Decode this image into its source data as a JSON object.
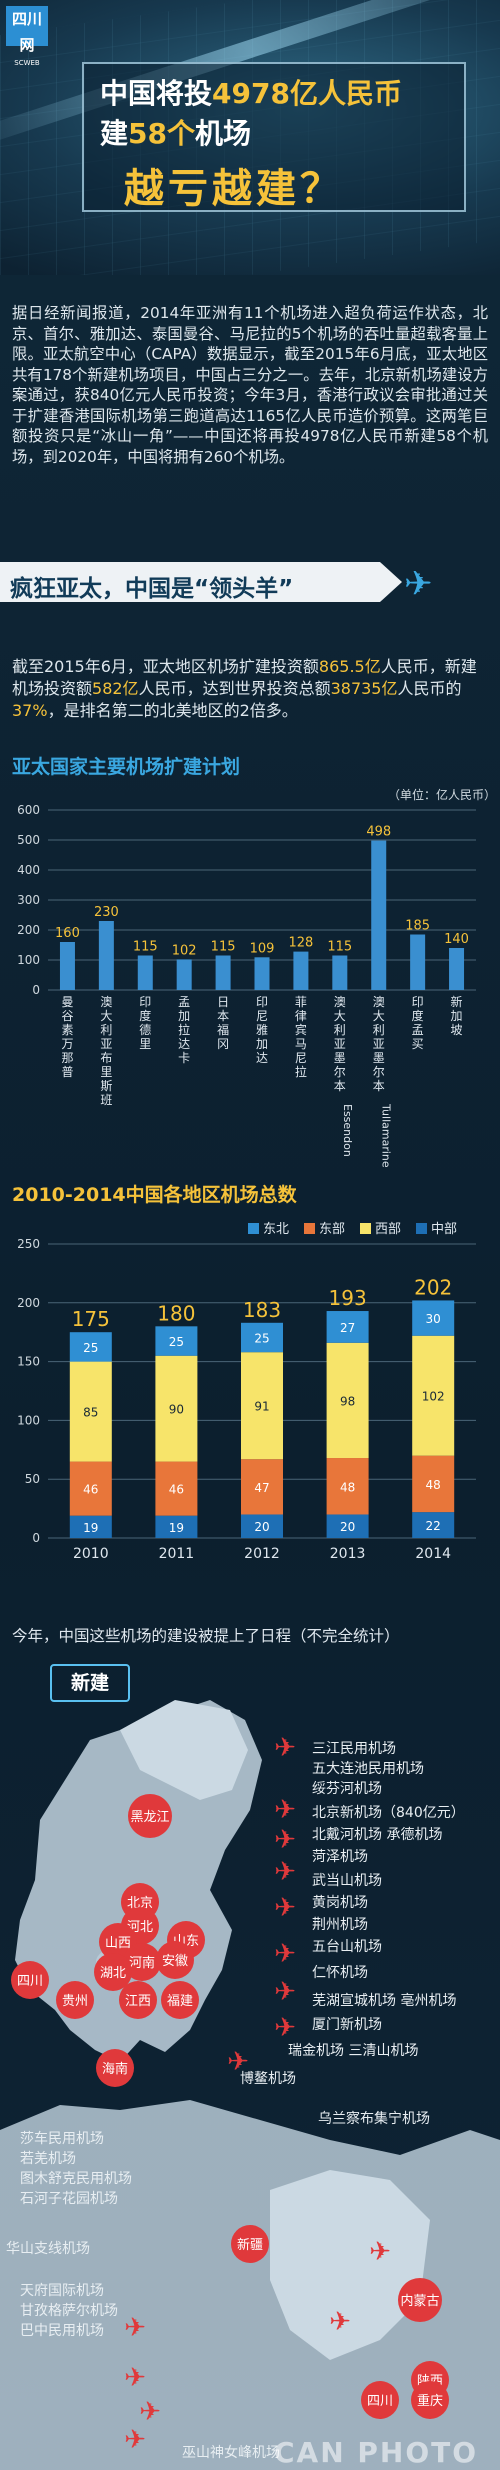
{
  "header": {
    "logo_text": "四川网",
    "logo_sub": "SCWEB",
    "title_line1_pre": "中国将投",
    "title_line1_hl": "4978亿人民币",
    "title_line2_pre": "建",
    "title_line2_hl": "58个",
    "title_line2_post": "机场",
    "title_line3": "越亏越建？"
  },
  "intro": "据日经新闻报道，2014年亚洲有11个机场进入超负荷运作状态，北京、首尔、雅加达、泰国曼谷、马尼拉的5个机场的吞吐量超载客量上限。亚太航空中心（CAPA）数据显示，截至2015年6月底，亚太地区共有178个新建机场项目，中国占三分之一。去年，北京新机场建设方案通过，获840亿元人民币投资；今年3月，香港行政议会审批通过关于扩建香港国际机场第三跑道高达1165亿人民币造价预算。这两笔巨额投资只是“冰山一角”——中国还将再投4978亿人民币新建58个机场，到2020年，中国将拥有260个机场。",
  "section": {
    "banner": "疯狂亚太，中国是“领头羊”"
  },
  "para2": {
    "a": "截至2015年6月，亚太地区机场扩建投资额",
    "b": "865.5亿",
    "c": "人民币，新建机场投资额",
    "d": "582亿",
    "e": "人民币，达到世界投资总额",
    "f": "38735亿",
    "g": "人民币的",
    "h": "37%",
    "i": "，是排名第二的北美地区的2倍多。"
  },
  "chart_data": [
    {
      "type": "bar",
      "title": "亚太国家主要机场扩建计划",
      "unit": "（单位：亿人民币）",
      "categories": [
        "曼谷素万那普",
        "澳大利亚布里斯班",
        "印度德里",
        "孟加拉达卡",
        "日本福冈",
        "印尼雅加达",
        "菲律宾马尼拉",
        "澳大利亚墨尔本Essendon",
        "澳大利亚墨尔本Tullamarine",
        "印度孟买",
        "新加坡"
      ],
      "values": [
        160,
        230,
        115,
        102,
        115,
        109,
        128,
        115,
        498,
        185,
        140
      ],
      "ylim": [
        0,
        600
      ],
      "yticks": [
        0,
        100,
        200,
        300,
        400,
        500,
        600
      ],
      "colors": [
        "#3a8fd0",
        "#3a8fd0",
        "#3a8fd0",
        "#3a8fd0",
        "#3a8fd0",
        "#3a8fd0",
        "#3a8fd0",
        "#3a8fd0",
        "#3a8fd0",
        "#3a8fd0",
        "#3a8fd0"
      ],
      "label_color": "#f5c23a",
      "grid": true
    },
    {
      "type": "bar",
      "stacked": true,
      "title": "2010-2014中国各地区机场总数",
      "categories": [
        "2010",
        "2011",
        "2012",
        "2013",
        "2014"
      ],
      "totals": [
        175,
        180,
        183,
        193,
        202
      ],
      "series": [
        {
          "name": "东北",
          "values": [
            25,
            25,
            25,
            27,
            30
          ],
          "color": "#2f8fd3"
        },
        {
          "name": "东部",
          "values": [
            46,
            46,
            47,
            48,
            48
          ],
          "color": "#e8763a"
        },
        {
          "name": "西部",
          "values": [
            85,
            90,
            91,
            98,
            102
          ],
          "color": "#f7e46a"
        },
        {
          "name": "中部",
          "values": [
            19,
            19,
            20,
            20,
            22
          ],
          "color": "#1e6fb5"
        }
      ],
      "legend_order": [
        "东北",
        "东部",
        "西部",
        "中部"
      ],
      "ylim": [
        0,
        250
      ],
      "yticks": [
        0,
        50,
        100,
        150,
        200,
        250
      ],
      "grid": true
    }
  ],
  "schedule": {
    "text": "今年，中国这些机场的建设被提上了日程（不完全统计）",
    "new_label": "新建",
    "provinces": [
      "黑龙江",
      "北京",
      "河北",
      "山西",
      "山东",
      "河南",
      "安徽",
      "湖北",
      "四川",
      "贵州",
      "江西",
      "福建",
      "海南",
      "新疆",
      "内蒙古",
      "陕西",
      "四川",
      "重庆"
    ],
    "east_list": [
      "三江民用机场",
      "五大连池民用机场",
      "绥芬河机场",
      "北京新机场（840亿元）",
      "北戴河机场 承德机场",
      "菏泽机场",
      "武当山机场",
      "黄岗机场",
      "荆州机场",
      "五台山机场",
      "仁怀机场",
      "芜湖宣城机场 亳州机场",
      "厦门新机场",
      "瑞金机场 三清山机场",
      "博鳌机场"
    ],
    "west_list": [
      "莎车民用机场",
      "若羌机场",
      "图木舒克民用机场",
      "石河子花园机场",
      "乌兰察布集宁机场",
      "华山支线机场",
      "天府国际机场",
      "甘孜格萨尔机场",
      "巴中民用机场",
      "巫山神女峰机场"
    ]
  },
  "watermark": "CAN PHOTO"
}
